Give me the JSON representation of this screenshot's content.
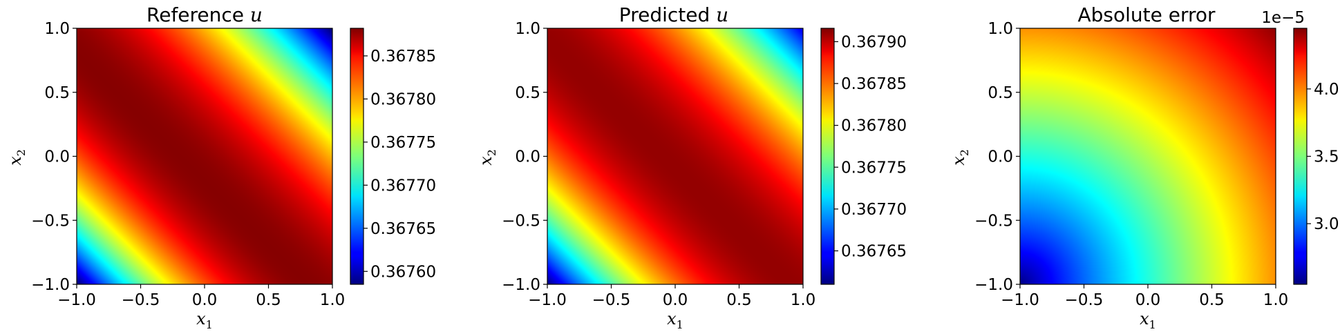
{
  "chart_data": [
    {
      "type": "heatmap",
      "title": "Reference u",
      "title_text": "Reference ",
      "title_var": "u",
      "xlabel": "x1",
      "ylabel": "x2",
      "xlabel_base": "x",
      "xlabel_sub": "1",
      "ylabel_base": "x",
      "ylabel_sub": "2",
      "xlim": [
        -1.0,
        1.0
      ],
      "ylim": [
        -1.0,
        1.0
      ],
      "xticks": [
        "−1.0",
        "−0.5",
        "0.0",
        "0.5",
        "1.0"
      ],
      "yticks": [
        "−1.0",
        "−0.5",
        "0.0",
        "0.5",
        "1.0"
      ],
      "colormap": "jet",
      "field": "ridge",
      "ridge_center": -0.1,
      "corner_bottom_left": 0.36758,
      "corner_top_right": 0.36758,
      "peak": 0.36788,
      "zlim": [
        0.367585,
        0.367882
      ],
      "colorbar_ticks": [
        0.3676,
        0.36765,
        0.3677,
        0.36775,
        0.3678,
        0.36785
      ],
      "colorbar_labels": [
        "0.36760",
        "0.36765",
        "0.36770",
        "0.36775",
        "0.36780",
        "0.36785"
      ],
      "colorbar_offset": ""
    },
    {
      "type": "heatmap",
      "title": "Predicted u",
      "title_text": "Predicted ",
      "title_var": "u",
      "xlabel": "x1",
      "ylabel": "x2",
      "xlabel_base": "x",
      "xlabel_sub": "1",
      "ylabel_base": "x",
      "ylabel_sub": "2",
      "xlim": [
        -1.0,
        1.0
      ],
      "ylim": [
        -1.0,
        1.0
      ],
      "xticks": [
        "−1.0",
        "−0.5",
        "0.0",
        "0.5",
        "1.0"
      ],
      "yticks": [
        "−1.0",
        "−0.5",
        "0.0",
        "0.5",
        "1.0"
      ],
      "colormap": "jet",
      "field": "ridge",
      "ridge_center": -0.05,
      "corner_bottom_left": 0.36761,
      "corner_top_right": 0.36764,
      "peak": 0.36791,
      "zlim": [
        0.36761,
        0.367916
      ],
      "colorbar_ticks": [
        0.36765,
        0.3677,
        0.36775,
        0.3678,
        0.36785,
        0.3679
      ],
      "colorbar_labels": [
        "0.36765",
        "0.36770",
        "0.36775",
        "0.36780",
        "0.36785",
        "0.36790"
      ],
      "colorbar_offset": ""
    },
    {
      "type": "heatmap",
      "title": "Absolute error",
      "title_text": "Absolute error",
      "title_var": "",
      "xlabel": "x1",
      "ylabel": "x2",
      "xlabel_base": "x",
      "xlabel_sub": "1",
      "ylabel_base": "x",
      "ylabel_sub": "2",
      "xlim": [
        -1.0,
        1.0
      ],
      "ylim": [
        -1.0,
        1.0
      ],
      "xticks": [
        "−1.0",
        "−0.5",
        "0.0",
        "0.5",
        "1.0"
      ],
      "yticks": [
        "−1.0",
        "−0.5",
        "0.0",
        "0.5",
        "1.0"
      ],
      "colormap": "jet",
      "field": "radial",
      "value_bottom_left": 2.55e-05,
      "value_top_right": 4.42e-05,
      "zlim": [
        2.55e-05,
        4.45e-05
      ],
      "colorbar_ticks": [
        3e-05,
        3.5e-05,
        4e-05
      ],
      "colorbar_labels": [
        "3.0",
        "3.5",
        "4.0"
      ],
      "colorbar_offset": "1e−5"
    }
  ]
}
